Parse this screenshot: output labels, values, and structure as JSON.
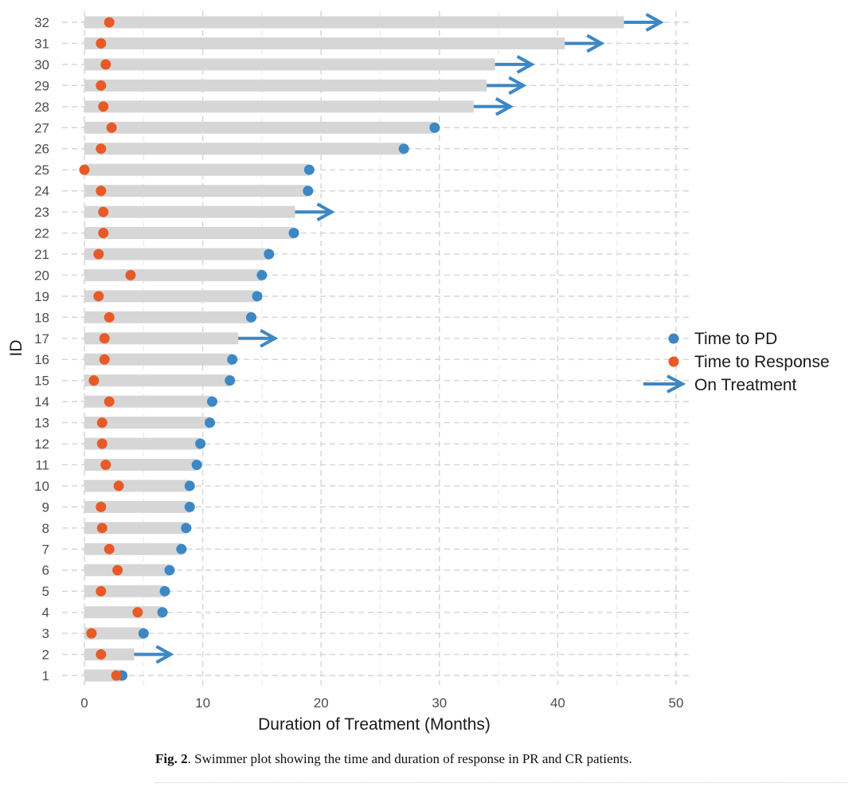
{
  "chart_data": {
    "type": "swimmer",
    "xlabel": "Duration of Treatment (Months)",
    "ylabel": "ID",
    "xlim": [
      0,
      51
    ],
    "x_ticks": [
      0,
      10,
      20,
      30,
      40,
      50
    ],
    "colors": {
      "bar": "#d6d6d6",
      "pd": "#3d87c4",
      "response": "#e65a27",
      "arrow": "#3d87c4",
      "grid_major": "#d4d4d4",
      "grid_minor": "#e8e8e8"
    },
    "legend": {
      "position": "right",
      "items": [
        {
          "key": "pd",
          "label": "Time to PD"
        },
        {
          "key": "response",
          "label": "Time to Response"
        },
        {
          "key": "arrow",
          "label": "On Treatment"
        }
      ]
    },
    "patients": [
      {
        "id": 1,
        "duration": 3.2,
        "response": 2.7,
        "pd": 3.2,
        "ongoing": false
      },
      {
        "id": 2,
        "duration": 4.2,
        "response": 1.4,
        "pd": null,
        "ongoing": true
      },
      {
        "id": 3,
        "duration": 5.0,
        "response": 0.6,
        "pd": 5.0,
        "ongoing": false
      },
      {
        "id": 4,
        "duration": 6.6,
        "response": 4.5,
        "pd": 6.6,
        "ongoing": false
      },
      {
        "id": 5,
        "duration": 6.8,
        "response": 1.4,
        "pd": 6.8,
        "ongoing": false
      },
      {
        "id": 6,
        "duration": 7.2,
        "response": 2.8,
        "pd": 7.2,
        "ongoing": false
      },
      {
        "id": 7,
        "duration": 8.2,
        "response": 2.1,
        "pd": 8.2,
        "ongoing": false
      },
      {
        "id": 8,
        "duration": 8.6,
        "response": 1.5,
        "pd": 8.6,
        "ongoing": false
      },
      {
        "id": 9,
        "duration": 8.9,
        "response": 1.4,
        "pd": 8.9,
        "ongoing": false
      },
      {
        "id": 10,
        "duration": 8.9,
        "response": 2.9,
        "pd": 8.9,
        "ongoing": false
      },
      {
        "id": 11,
        "duration": 9.5,
        "response": 1.8,
        "pd": 9.5,
        "ongoing": false
      },
      {
        "id": 12,
        "duration": 9.8,
        "response": 1.5,
        "pd": 9.8,
        "ongoing": false
      },
      {
        "id": 13,
        "duration": 10.6,
        "response": 1.5,
        "pd": 10.6,
        "ongoing": false
      },
      {
        "id": 14,
        "duration": 10.8,
        "response": 2.1,
        "pd": 10.8,
        "ongoing": false
      },
      {
        "id": 15,
        "duration": 12.3,
        "response": 0.8,
        "pd": 12.3,
        "ongoing": false
      },
      {
        "id": 16,
        "duration": 12.5,
        "response": 1.7,
        "pd": 12.5,
        "ongoing": false
      },
      {
        "id": 17,
        "duration": 13.0,
        "response": 1.7,
        "pd": null,
        "ongoing": true
      },
      {
        "id": 18,
        "duration": 14.1,
        "response": 2.1,
        "pd": 14.1,
        "ongoing": false
      },
      {
        "id": 19,
        "duration": 14.6,
        "response": 1.2,
        "pd": 14.6,
        "ongoing": false
      },
      {
        "id": 20,
        "duration": 15.0,
        "response": 3.9,
        "pd": 15.0,
        "ongoing": false
      },
      {
        "id": 21,
        "duration": 15.6,
        "response": 1.2,
        "pd": 15.6,
        "ongoing": false
      },
      {
        "id": 22,
        "duration": 17.7,
        "response": 1.6,
        "pd": 17.7,
        "ongoing": false
      },
      {
        "id": 23,
        "duration": 17.8,
        "response": 1.6,
        "pd": null,
        "ongoing": true
      },
      {
        "id": 24,
        "duration": 18.9,
        "response": 1.4,
        "pd": 18.9,
        "ongoing": false
      },
      {
        "id": 25,
        "duration": 19.0,
        "response": 0.0,
        "pd": 19.0,
        "ongoing": false
      },
      {
        "id": 26,
        "duration": 27.0,
        "response": 1.4,
        "pd": 27.0,
        "ongoing": false
      },
      {
        "id": 27,
        "duration": 29.6,
        "response": 2.3,
        "pd": 29.6,
        "ongoing": false
      },
      {
        "id": 28,
        "duration": 32.9,
        "response": 1.6,
        "pd": null,
        "ongoing": true
      },
      {
        "id": 29,
        "duration": 34.0,
        "response": 1.4,
        "pd": null,
        "ongoing": true
      },
      {
        "id": 30,
        "duration": 34.7,
        "response": 1.8,
        "pd": null,
        "ongoing": true
      },
      {
        "id": 31,
        "duration": 40.6,
        "response": 1.4,
        "pd": null,
        "ongoing": true
      },
      {
        "id": 32,
        "duration": 45.6,
        "response": 2.1,
        "pd": null,
        "ongoing": true
      }
    ]
  },
  "caption": {
    "label": "Fig. 2",
    "text": ".  Swimmer plot showing the time and duration of response in PR and CR patients."
  }
}
